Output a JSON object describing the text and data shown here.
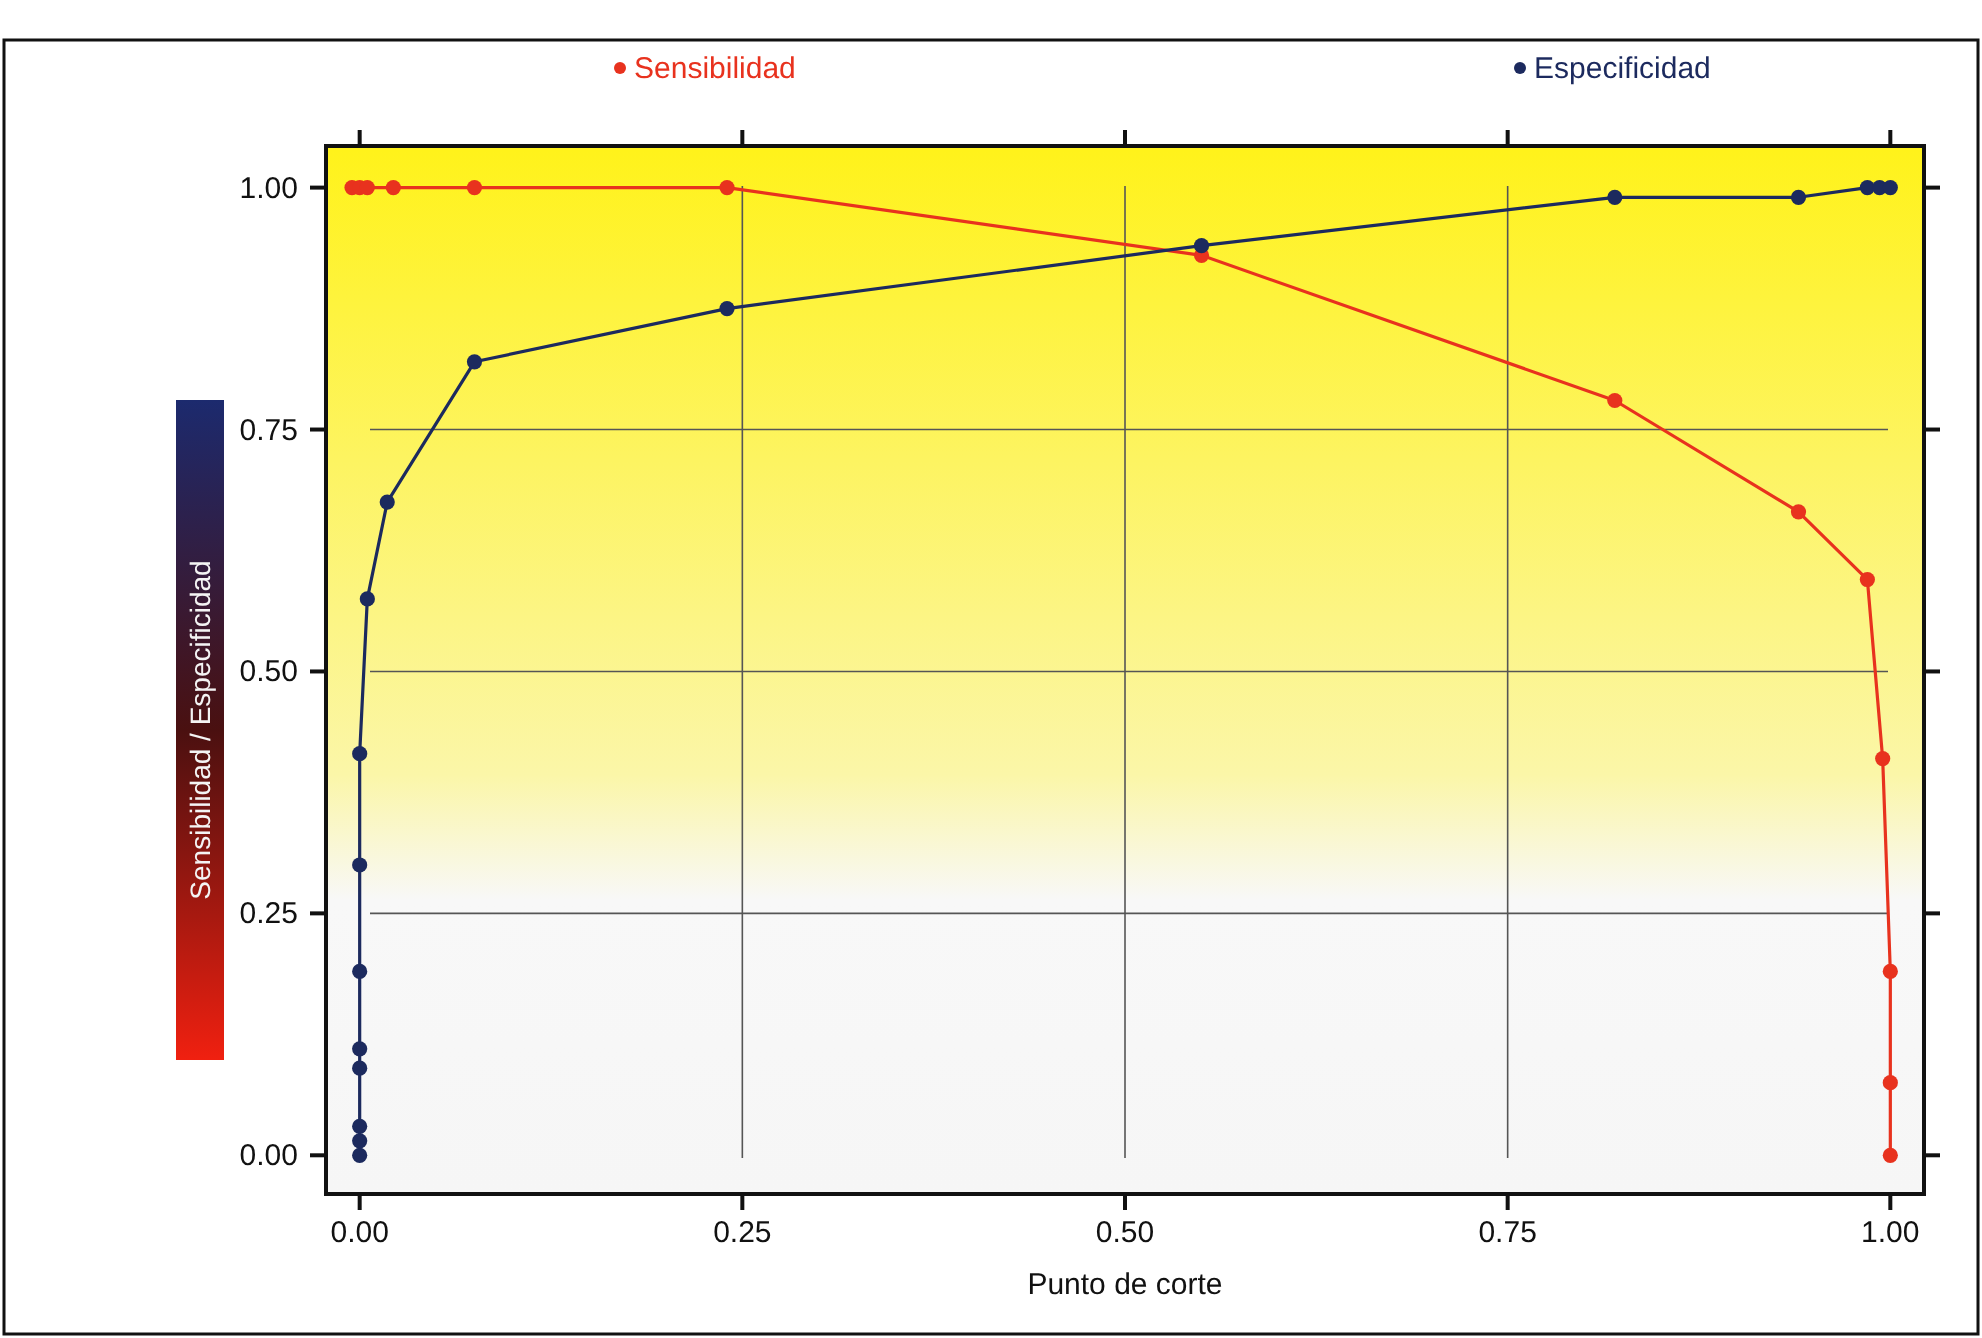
{
  "chart_data": {
    "type": "line",
    "xlabel": "Punto de corte",
    "ylabel": "Sensibilidad / Especificidad",
    "xlim": [
      -0.022,
      1.022
    ],
    "ylim": [
      -0.04,
      1.043
    ],
    "xticks": [
      {
        "value": 0,
        "label": "0.00"
      },
      {
        "value": 0.25,
        "label": "0.25"
      },
      {
        "value": 0.5,
        "label": "0.50"
      },
      {
        "value": 0.75,
        "label": "0.75"
      },
      {
        "value": 1,
        "label": "1.00"
      }
    ],
    "yticks": [
      {
        "value": 0,
        "label": "0.00"
      },
      {
        "value": 0.25,
        "label": "0.25"
      },
      {
        "value": 0.5,
        "label": "0.50"
      },
      {
        "value": 0.75,
        "label": "0.75"
      },
      {
        "value": 1,
        "label": "1.00"
      }
    ],
    "grid": true,
    "legend": "top",
    "marker": "circle",
    "line_style": "solid",
    "series": [
      {
        "name": "Sensibilidad",
        "color": "#e8321e",
        "x": [
          -0.005,
          0,
          0.005,
          0.022,
          0.075,
          0.24,
          0.55,
          0.82,
          0.94,
          0.985,
          0.995,
          1.0,
          1.0,
          1.0
        ],
        "values": [
          1,
          1,
          1,
          1,
          1,
          1,
          0.93,
          0.78,
          0.665,
          0.595,
          0.41,
          0.19,
          0.075,
          0.0
        ]
      },
      {
        "name": "Especificidad",
        "color": "#1c2a5e",
        "x": [
          0,
          0,
          0,
          0,
          0,
          0,
          0,
          0,
          0.005,
          0.018,
          0.075,
          0.24,
          0.55,
          0.82,
          0.94,
          0.985,
          0.993,
          1.0
        ],
        "values": [
          0,
          0.015,
          0.03,
          0.09,
          0.11,
          0.19,
          0.3,
          0.415,
          0.575,
          0.675,
          0.82,
          0.875,
          0.94,
          0.99,
          0.99,
          1.0,
          1.0,
          1.0
        ]
      }
    ]
  }
}
